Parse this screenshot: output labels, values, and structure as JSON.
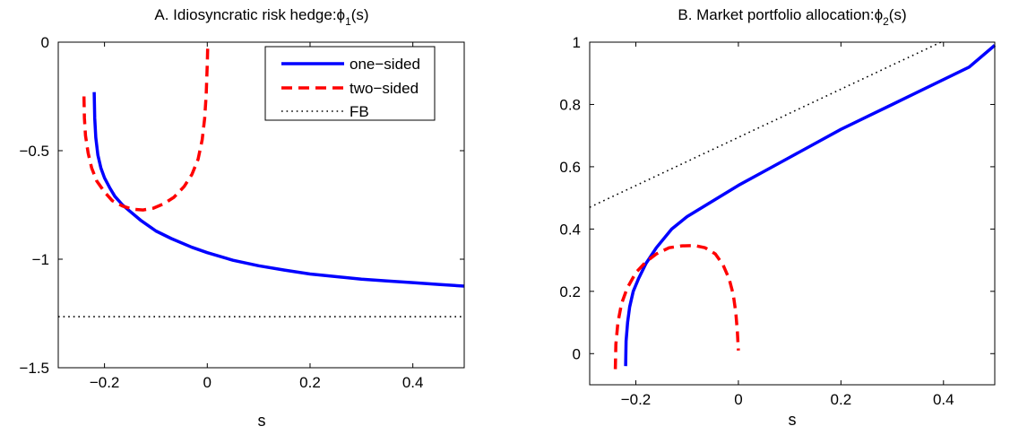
{
  "chart_data": [
    {
      "type": "line",
      "title": "A. Idiosyncratic risk hedge:",
      "title_symbol": "ϕ",
      "title_subscript": "1",
      "title_suffix": "(s)",
      "xlabel": "s",
      "ylabel": "",
      "xlim": [
        -0.29,
        0.5
      ],
      "ylim": [
        -1.5,
        0
      ],
      "xticks": [
        -0.2,
        0,
        0.2,
        0.4
      ],
      "xtick_labels": [
        "−0.2",
        "0",
        "0.2",
        "0.4"
      ],
      "yticks": [
        -1.5,
        -1,
        -0.5,
        0
      ],
      "ytick_labels": [
        "−1.5",
        "−1",
        "−0.5",
        "0"
      ],
      "grid": false,
      "legend_position": "top-right",
      "series": [
        {
          "name": "one−sided",
          "color": "#0000ff",
          "style": "solid",
          "points": [
            [
              -0.22,
              -0.23
            ],
            [
              -0.219,
              -0.35
            ],
            [
              -0.217,
              -0.44
            ],
            [
              -0.213,
              -0.52
            ],
            [
              -0.207,
              -0.58
            ],
            [
              -0.2,
              -0.625
            ],
            [
              -0.19,
              -0.67
            ],
            [
              -0.18,
              -0.71
            ],
            [
              -0.165,
              -0.75
            ],
            [
              -0.15,
              -0.78
            ],
            [
              -0.13,
              -0.82
            ],
            [
              -0.1,
              -0.87
            ],
            [
              -0.07,
              -0.905
            ],
            [
              -0.03,
              -0.945
            ],
            [
              0,
              -0.97
            ],
            [
              0.05,
              -1.005
            ],
            [
              0.1,
              -1.03
            ],
            [
              0.15,
              -1.05
            ],
            [
              0.2,
              -1.068
            ],
            [
              0.25,
              -1.08
            ],
            [
              0.3,
              -1.092
            ],
            [
              0.35,
              -1.1
            ],
            [
              0.4,
              -1.108
            ],
            [
              0.45,
              -1.116
            ],
            [
              0.5,
              -1.124
            ]
          ]
        },
        {
          "name": "two−sided",
          "color": "#ff0000",
          "style": "dashed",
          "points": [
            [
              -0.24,
              -0.25
            ],
            [
              -0.239,
              -0.35
            ],
            [
              -0.237,
              -0.43
            ],
            [
              -0.232,
              -0.51
            ],
            [
              -0.225,
              -0.58
            ],
            [
              -0.215,
              -0.64
            ],
            [
              -0.2,
              -0.69
            ],
            [
              -0.185,
              -0.73
            ],
            [
              -0.165,
              -0.755
            ],
            [
              -0.145,
              -0.77
            ],
            [
              -0.125,
              -0.773
            ],
            [
              -0.105,
              -0.765
            ],
            [
              -0.085,
              -0.745
            ],
            [
              -0.065,
              -0.715
            ],
            [
              -0.045,
              -0.665
            ],
            [
              -0.03,
              -0.61
            ],
            [
              -0.018,
              -0.54
            ],
            [
              -0.01,
              -0.45
            ],
            [
              -0.005,
              -0.35
            ],
            [
              -0.002,
              -0.24
            ],
            [
              0,
              -0.1
            ],
            [
              0.001,
              0
            ]
          ]
        },
        {
          "name": "FB",
          "color": "#000000",
          "style": "dotted",
          "points": [
            [
              -0.29,
              -1.265
            ],
            [
              0.5,
              -1.265
            ]
          ]
        }
      ]
    },
    {
      "type": "line",
      "title": "B. Market portfolio allocation:",
      "title_symbol": "ϕ",
      "title_subscript": "2",
      "title_suffix": "(s)",
      "xlabel": "s",
      "ylabel": "",
      "xlim": [
        -0.29,
        0.5
      ],
      "ylim": [
        -0.1,
        1
      ],
      "xticks": [
        -0.2,
        0,
        0.2,
        0.4
      ],
      "xtick_labels": [
        "−0.2",
        "0",
        "0.2",
        "0.4"
      ],
      "yticks": [
        0,
        0.2,
        0.4,
        0.6,
        0.8,
        1
      ],
      "ytick_labels": [
        "0",
        "0.2",
        "0.4",
        "0.6",
        "0.8",
        "1"
      ],
      "grid": false,
      "series": [
        {
          "name": "one−sided",
          "color": "#0000ff",
          "style": "solid",
          "points": [
            [
              -0.22,
              -0.04
            ],
            [
              -0.219,
              0.04
            ],
            [
              -0.216,
              0.1
            ],
            [
              -0.212,
              0.15
            ],
            [
              -0.205,
              0.2
            ],
            [
              -0.195,
              0.24
            ],
            [
              -0.18,
              0.29
            ],
            [
              -0.16,
              0.34
            ],
            [
              -0.13,
              0.4
            ],
            [
              -0.1,
              0.44
            ],
            [
              -0.05,
              0.49
            ],
            [
              0,
              0.54
            ],
            [
              0.05,
              0.585
            ],
            [
              0.1,
              0.63
            ],
            [
              0.15,
              0.675
            ],
            [
              0.2,
              0.72
            ],
            [
              0.25,
              0.76
            ],
            [
              0.3,
              0.8
            ],
            [
              0.35,
              0.84
            ],
            [
              0.4,
              0.88
            ],
            [
              0.45,
              0.92
            ],
            [
              0.5,
              0.99
            ]
          ]
        },
        {
          "name": "two−sided",
          "color": "#ff0000",
          "style": "dashed",
          "points": [
            [
              -0.24,
              -0.05
            ],
            [
              -0.239,
              0.03
            ],
            [
              -0.235,
              0.1
            ],
            [
              -0.228,
              0.16
            ],
            [
              -0.217,
              0.21
            ],
            [
              -0.2,
              0.26
            ],
            [
              -0.18,
              0.295
            ],
            [
              -0.16,
              0.32
            ],
            [
              -0.135,
              0.34
            ],
            [
              -0.11,
              0.346
            ],
            [
              -0.085,
              0.347
            ],
            [
              -0.065,
              0.34
            ],
            [
              -0.045,
              0.32
            ],
            [
              -0.03,
              0.285
            ],
            [
              -0.018,
              0.24
            ],
            [
              -0.01,
              0.19
            ],
            [
              -0.005,
              0.13
            ],
            [
              -0.002,
              0.07
            ],
            [
              0,
              0.01
            ]
          ]
        },
        {
          "name": "FB",
          "color": "#000000",
          "style": "dotted",
          "points": [
            [
              -0.29,
              0.47
            ],
            [
              0.395,
              1
            ]
          ]
        }
      ]
    }
  ]
}
